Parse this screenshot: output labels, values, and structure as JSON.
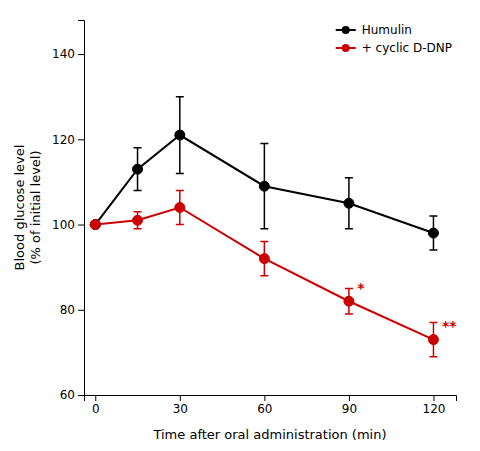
{
  "chart_data": {
    "type": "line",
    "xlabel": "Time after oral administration (min)",
    "ylabel": "Blood glucose level\n(% of initial level)",
    "x": [
      0,
      15,
      30,
      60,
      90,
      120
    ],
    "series": [
      {
        "name": "Humulin",
        "color": "#000000",
        "marker": "circle",
        "values": [
          100,
          113,
          121,
          109,
          105,
          98
        ],
        "errors": [
          0,
          5,
          9,
          10,
          6,
          4
        ]
      },
      {
        "name": "+ cyclic D-DNP",
        "color": "#cc0000",
        "marker": "circle",
        "values": [
          100,
          101,
          104,
          92,
          82,
          73
        ],
        "errors": [
          0,
          2,
          4,
          4,
          3,
          4
        ]
      }
    ],
    "annotations": [
      {
        "text": "*",
        "x": 93,
        "y": 84,
        "color": "#cc0000"
      },
      {
        "text": "**",
        "x": 123,
        "y": 75,
        "color": "#cc0000"
      }
    ],
    "xlim": [
      -4,
      128
    ],
    "ylim": [
      60,
      148
    ],
    "xticks": [
      0,
      30,
      60,
      90,
      120
    ],
    "yticks": [
      60,
      80,
      100,
      120,
      140
    ],
    "grid": false,
    "legend": "upper right"
  }
}
